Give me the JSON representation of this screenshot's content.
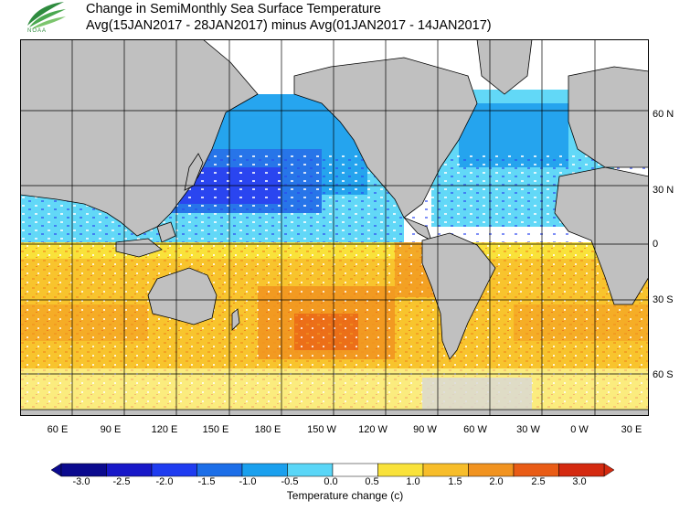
{
  "header": {
    "title_line1": "Change in SemiMonthly Sea Surface Temperature",
    "title_line2": "Avg(15JAN2017 - 28JAN2017) minus Avg(01JAN2017 - 14JAN2017)"
  },
  "logo": {
    "icon": "noaa-logo-icon",
    "text": "NOAA"
  },
  "map": {
    "lon_labels": [
      "60 E",
      "90 E",
      "120 E",
      "150 E",
      "180 E",
      "150 W",
      "120 W",
      "90 W",
      "60 W",
      "30 W",
      "0 W",
      "30 E"
    ],
    "lat_labels": [
      "60 N",
      "30 N",
      "0",
      "30 S",
      "60 S"
    ],
    "land_color": "#c0c0c0",
    "ocean_no_change_color": "#ffffff"
  },
  "colorbar": {
    "title": "Temperature change  (c)",
    "tick_labels": [
      "-3.0",
      "-2.5",
      "-2.0",
      "-1.5",
      "-1.0",
      "-0.5",
      "0.0",
      "0.5",
      "1.0",
      "1.5",
      "2.0",
      "2.5",
      "3.0"
    ],
    "colors": [
      "#0b0a8e",
      "#1818c8",
      "#1f3cf0",
      "#1c6ee8",
      "#1aa0ee",
      "#5ad6f7",
      "#ffffff",
      "#f9e23a",
      "#f7bd2a",
      "#f19320",
      "#e95c16",
      "#d42a10"
    ]
  }
}
